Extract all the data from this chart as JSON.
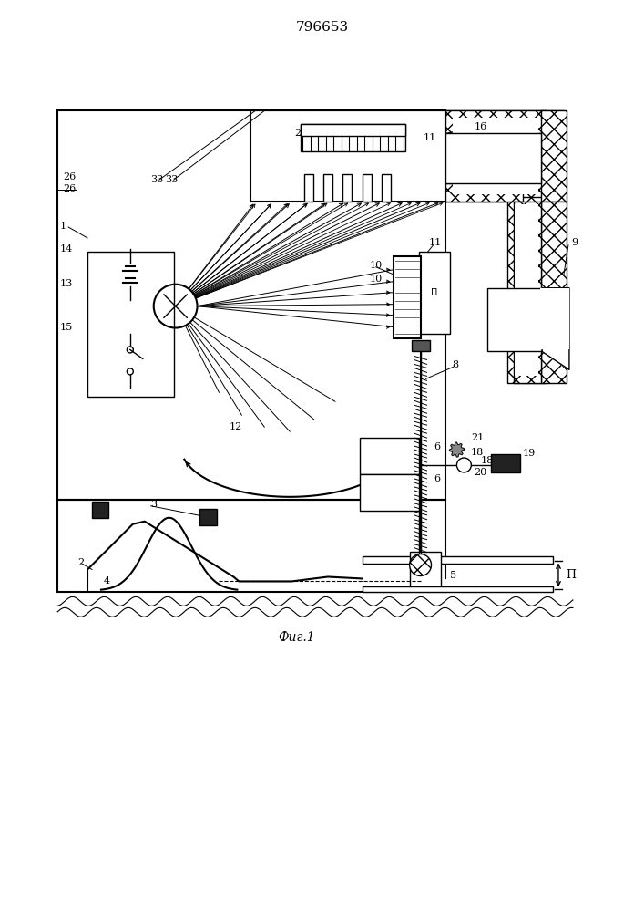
{
  "title": "796653",
  "fig_label": "Фиг.1",
  "background_color": "#ffffff",
  "line_color": "#000000",
  "title_fontsize": 11,
  "label_fontsize": 8
}
